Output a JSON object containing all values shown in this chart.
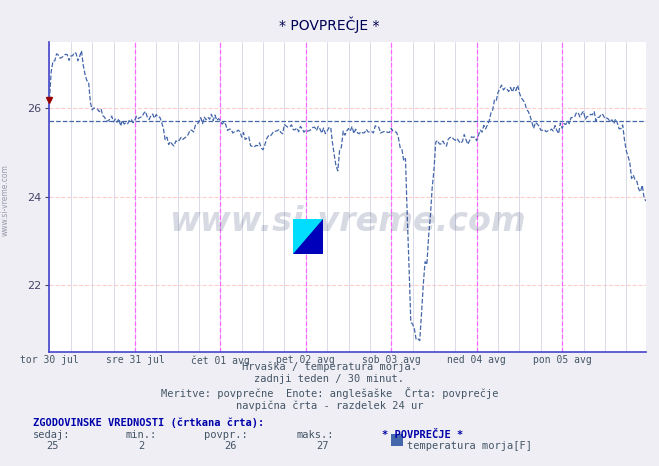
{
  "title": "* POVPREČJE *",
  "bg_color": "#eeeef4",
  "plot_bg_color": "#ffffff",
  "line_color": "#4466aa",
  "line_color2": "#6688cc",
  "avg_line_color": "#4466aa",
  "grid_color_red": "#ffcccc",
  "grid_color_gray": "#ccccdd",
  "vline_color": "#ff66ff",
  "ylim": [
    20.5,
    27.5
  ],
  "yticks": [
    22,
    24,
    26
  ],
  "xlabel_texts": [
    "tor 30 jul",
    "sre 31 jul",
    "čet 01 avg",
    "pet 02 avg",
    "sob 03 avg",
    "ned 04 avg",
    "pon 05 avg"
  ],
  "total_points": 336,
  "avg_value": 25.72,
  "caption_line1": "Hrvaška / temperatura morja.",
  "caption_line2": "zadnji teden / 30 minut.",
  "caption_line3": "Meritve: povprečne  Enote: anglešaške  Črta: povprečje",
  "caption_line4": "navpična črta - razdelek 24 ur",
  "hist_label": "ZGODOVINSKE VREDNOSTI (črtkana črta):",
  "hist_sedaj": "sedaj:",
  "hist_min": "min.:",
  "hist_povpr": "povpr.:",
  "hist_maks": "maks.:",
  "hist_name": "* POVPREČJE *",
  "hist_vals": [
    25,
    2,
    26,
    27
  ],
  "legend_label": "temperatura morja[F]",
  "legend_color": "#4466aa",
  "watermark": "www.si-vreme.com",
  "watermark_color": "#223366",
  "left_text": "www.si-vreme.com"
}
